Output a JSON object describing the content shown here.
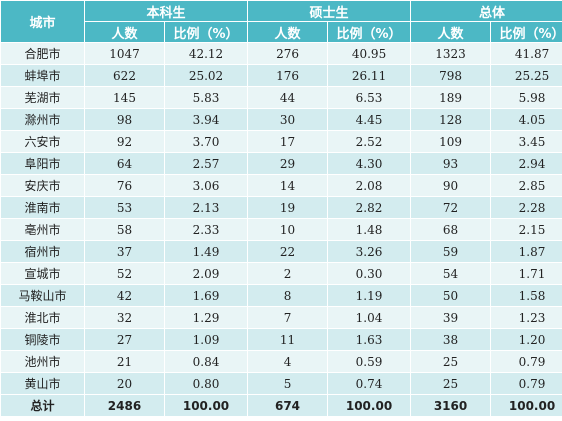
{
  "header": {
    "city": "城市",
    "groups": [
      "本科生",
      "硕士生",
      "总体"
    ],
    "count": "人数",
    "ratio": "比例（%）"
  },
  "rows": [
    {
      "city": "合肥市",
      "ug_n": "1047",
      "ug_p": "42.12",
      "ms_n": "276",
      "ms_p": "40.95",
      "all_n": "1323",
      "all_p": "41.87"
    },
    {
      "city": "蚌埠市",
      "ug_n": "622",
      "ug_p": "25.02",
      "ms_n": "176",
      "ms_p": "26.11",
      "all_n": "798",
      "all_p": "25.25"
    },
    {
      "city": "芜湖市",
      "ug_n": "145",
      "ug_p": "5.83",
      "ms_n": "44",
      "ms_p": "6.53",
      "all_n": "189",
      "all_p": "5.98"
    },
    {
      "city": "滁州市",
      "ug_n": "98",
      "ug_p": "3.94",
      "ms_n": "30",
      "ms_p": "4.45",
      "all_n": "128",
      "all_p": "4.05"
    },
    {
      "city": "六安市",
      "ug_n": "92",
      "ug_p": "3.70",
      "ms_n": "17",
      "ms_p": "2.52",
      "all_n": "109",
      "all_p": "3.45"
    },
    {
      "city": "阜阳市",
      "ug_n": "64",
      "ug_p": "2.57",
      "ms_n": "29",
      "ms_p": "4.30",
      "all_n": "93",
      "all_p": "2.94"
    },
    {
      "city": "安庆市",
      "ug_n": "76",
      "ug_p": "3.06",
      "ms_n": "14",
      "ms_p": "2.08",
      "all_n": "90",
      "all_p": "2.85"
    },
    {
      "city": "淮南市",
      "ug_n": "53",
      "ug_p": "2.13",
      "ms_n": "19",
      "ms_p": "2.82",
      "all_n": "72",
      "all_p": "2.28"
    },
    {
      "city": "亳州市",
      "ug_n": "58",
      "ug_p": "2.33",
      "ms_n": "10",
      "ms_p": "1.48",
      "all_n": "68",
      "all_p": "2.15"
    },
    {
      "city": "宿州市",
      "ug_n": "37",
      "ug_p": "1.49",
      "ms_n": "22",
      "ms_p": "3.26",
      "all_n": "59",
      "all_p": "1.87"
    },
    {
      "city": "宣城市",
      "ug_n": "52",
      "ug_p": "2.09",
      "ms_n": "2",
      "ms_p": "0.30",
      "all_n": "54",
      "all_p": "1.71"
    },
    {
      "city": "马鞍山市",
      "ug_n": "42",
      "ug_p": "1.69",
      "ms_n": "8",
      "ms_p": "1.19",
      "all_n": "50",
      "all_p": "1.58"
    },
    {
      "city": "淮北市",
      "ug_n": "32",
      "ug_p": "1.29",
      "ms_n": "7",
      "ms_p": "1.04",
      "all_n": "39",
      "all_p": "1.23"
    },
    {
      "city": "铜陵市",
      "ug_n": "27",
      "ug_p": "1.09",
      "ms_n": "11",
      "ms_p": "1.63",
      "all_n": "38",
      "all_p": "1.20"
    },
    {
      "city": "池州市",
      "ug_n": "21",
      "ug_p": "0.84",
      "ms_n": "4",
      "ms_p": "0.59",
      "all_n": "25",
      "all_p": "0.79"
    },
    {
      "city": "黄山市",
      "ug_n": "20",
      "ug_p": "0.80",
      "ms_n": "5",
      "ms_p": "0.74",
      "all_n": "25",
      "all_p": "0.79"
    }
  ],
  "total": {
    "city": "总计",
    "ug_n": "2486",
    "ug_p": "100.00",
    "ms_n": "674",
    "ms_p": "100.00",
    "all_n": "3160",
    "all_p": "100.00"
  },
  "colors": {
    "header": "#4cb8c5",
    "row_light": "#e9f5f6",
    "row_dark": "#d3ecef"
  }
}
